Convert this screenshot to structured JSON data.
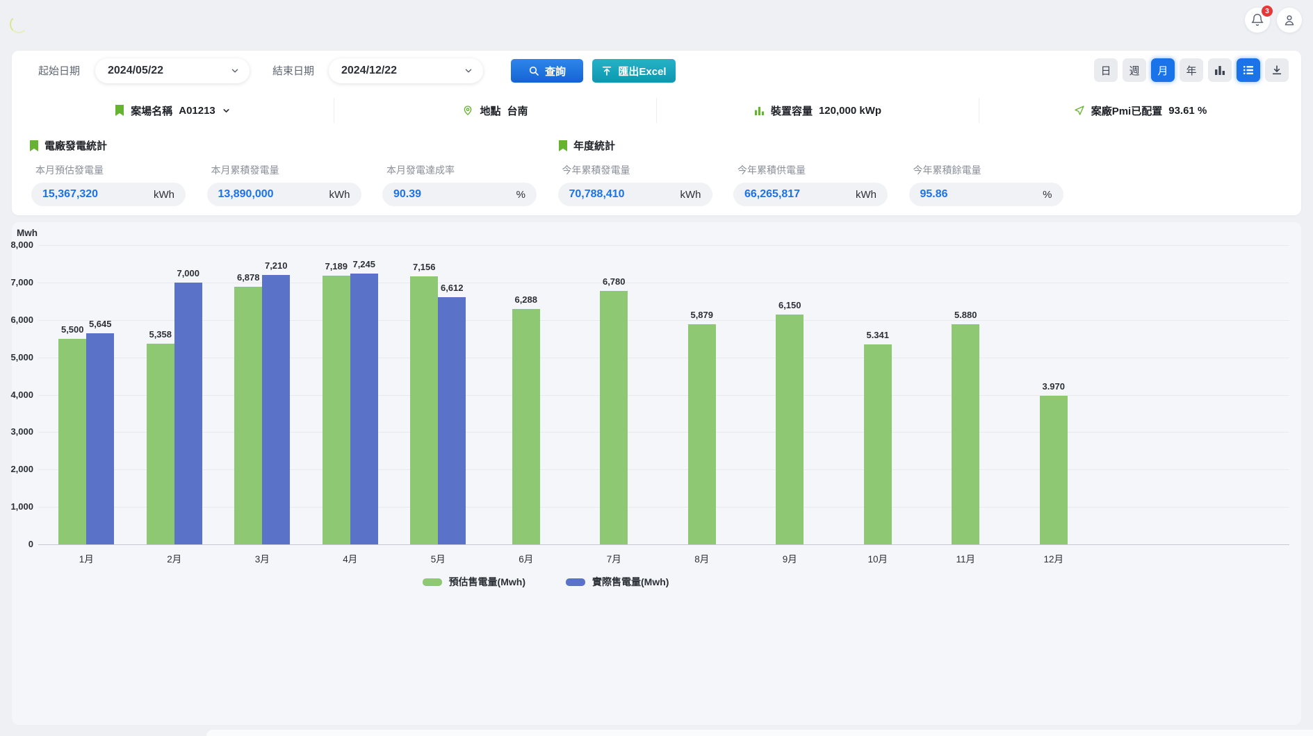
{
  "header": {
    "notifications_count": "3"
  },
  "filters": {
    "start_date_label": "起始日期",
    "start_date_value": "2024/05/22",
    "end_date_label": "結束日期",
    "end_date_value": "2024/12/22",
    "search_button": "查詢",
    "export_button": "匯出Excel",
    "view_toggles": [
      {
        "label": "日",
        "icon": null,
        "active": false
      },
      {
        "label": "週",
        "icon": null,
        "active": false
      },
      {
        "label": "月",
        "icon": null,
        "active": true
      },
      {
        "label": "年",
        "icon": null,
        "active": false
      },
      {
        "label": null,
        "icon": "bar-chart-icon",
        "active": false
      },
      {
        "label": null,
        "icon": "list-icon",
        "active": true
      },
      {
        "label": null,
        "icon": "download-icon",
        "active": false
      }
    ]
  },
  "site_info": [
    {
      "icon": "bookmark-icon",
      "label": "案場名稱",
      "value": "A01213",
      "has_chevron": true
    },
    {
      "icon": "location-pin-icon",
      "label": "地點",
      "value": "台南",
      "has_chevron": false
    },
    {
      "icon": "bar-chart-icon",
      "label": "裝置容量",
      "value": "120,000 kWp",
      "has_chevron": false
    },
    {
      "icon": "send-icon",
      "label": "案廠Pmi已配置",
      "value": "93.61 %",
      "has_chevron": false
    }
  ],
  "stats": {
    "section_monthly": "電廠發電統計",
    "section_yearly": "年度統計",
    "cards": [
      {
        "label": "本月預估發電量",
        "value": "15,367,320",
        "unit": "kWh"
      },
      {
        "label": "本月累積發電量",
        "value": "13,890,000",
        "unit": "kWh"
      },
      {
        "label": "本月發電達成率",
        "value": "90.39",
        "unit": "%"
      },
      {
        "label": "今年累積發電量",
        "value": "70,788,410",
        "unit": "kWh"
      },
      {
        "label": "今年累積供電量",
        "value": "66,265,817",
        "unit": "kWh"
      },
      {
        "label": "今年累積餘電量",
        "value": "95.86",
        "unit": "%"
      }
    ]
  },
  "chart_data": {
    "type": "bar",
    "title": "",
    "unit_label": "Mwh",
    "xlabel": "",
    "ylabel": "Mwh",
    "ylim": [
      0,
      8000
    ],
    "ytick_step": 1000,
    "ytick_labels": [
      "0",
      "1,000",
      "2,000",
      "3,000",
      "4,000",
      "5,000",
      "6,000",
      "7,000",
      "8,000"
    ],
    "grid": true,
    "legend_position": "bottom",
    "categories": [
      "1月",
      "2月",
      "3月",
      "4月",
      "5月",
      "6月",
      "7月",
      "8月",
      "9月",
      "10月",
      "11月",
      "12月"
    ],
    "series": [
      {
        "name": "預估售電量(Mwh)",
        "color": "#8ec873",
        "values": [
          5500,
          5358,
          6878,
          7189,
          7156,
          6288,
          6780,
          5879,
          6150,
          5341,
          5880,
          3970
        ],
        "labels": [
          "5,500",
          "5,358",
          "6,878",
          "7,189",
          "7,156",
          "6,288",
          "6,780",
          "5,879",
          "6,150",
          "5.341",
          "5.880",
          "3.970"
        ]
      },
      {
        "name": "實際售電量(Mwh)",
        "color": "#5a72c8",
        "values": [
          5645,
          7000,
          7210,
          7245,
          6612,
          null,
          null,
          null,
          null,
          null,
          null,
          null
        ],
        "labels": [
          "5,645",
          "7,000",
          "7,210",
          "7,245",
          "6,612",
          null,
          null,
          null,
          null,
          null,
          null,
          null
        ]
      }
    ]
  },
  "colors": {
    "accent_blue": "#1a73e8",
    "teal": "#14a3b8",
    "green_icon": "#65b32e",
    "bar_green": "#8ec873",
    "bar_blue": "#5a72c8",
    "badge_red": "#e53939",
    "value_blue": "#1a73e8"
  }
}
